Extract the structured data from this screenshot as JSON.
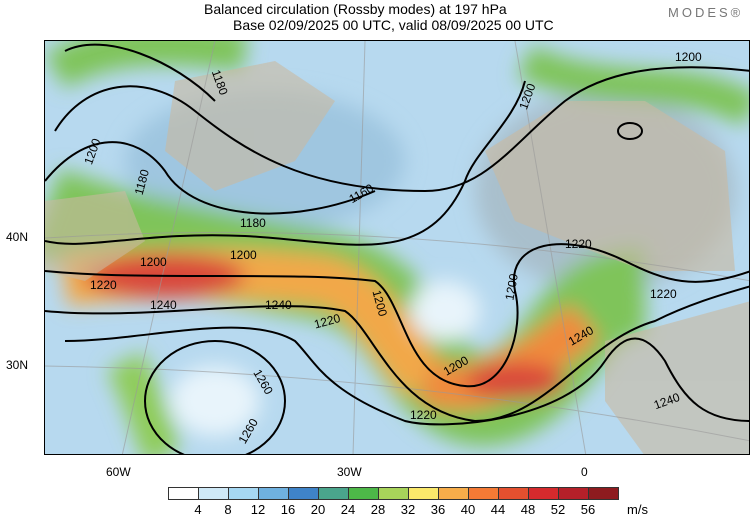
{
  "header": {
    "title": "Balanced circulation (Rossby modes) at 197 hPa",
    "subtitle": "Base 02/09/2025 00 UTC, valid 08/09/2025 00 UTC",
    "logo": "MODES®"
  },
  "axes": {
    "lat_labels": [
      "40N",
      "30N"
    ],
    "lon_labels": [
      "60W",
      "30W",
      "0"
    ]
  },
  "contour_labels": [
    "1180",
    "1200",
    "1180",
    "1160",
    "1180",
    "1200",
    "1200",
    "1220",
    "1240",
    "1240",
    "1220",
    "1200",
    "1200",
    "1200",
    "1220",
    "1260",
    "1260",
    "1220",
    "1220",
    "1240",
    "1240",
    "1200",
    "1200"
  ],
  "colorbar": {
    "ticks": [
      "4",
      "8",
      "12",
      "16",
      "20",
      "24",
      "28",
      "32",
      "36",
      "40",
      "44",
      "48",
      "52",
      "56"
    ],
    "units": "m/s",
    "colors": [
      "#ffffff",
      "#cfe9f7",
      "#a6d8f3",
      "#6fb1e0",
      "#3f83c8",
      "#4aa58c",
      "#4db848",
      "#a8d45a",
      "#fbe96b",
      "#f7ad4a",
      "#f47a35",
      "#e4502f",
      "#d52a2d",
      "#b52029",
      "#8e1b1f"
    ]
  }
}
